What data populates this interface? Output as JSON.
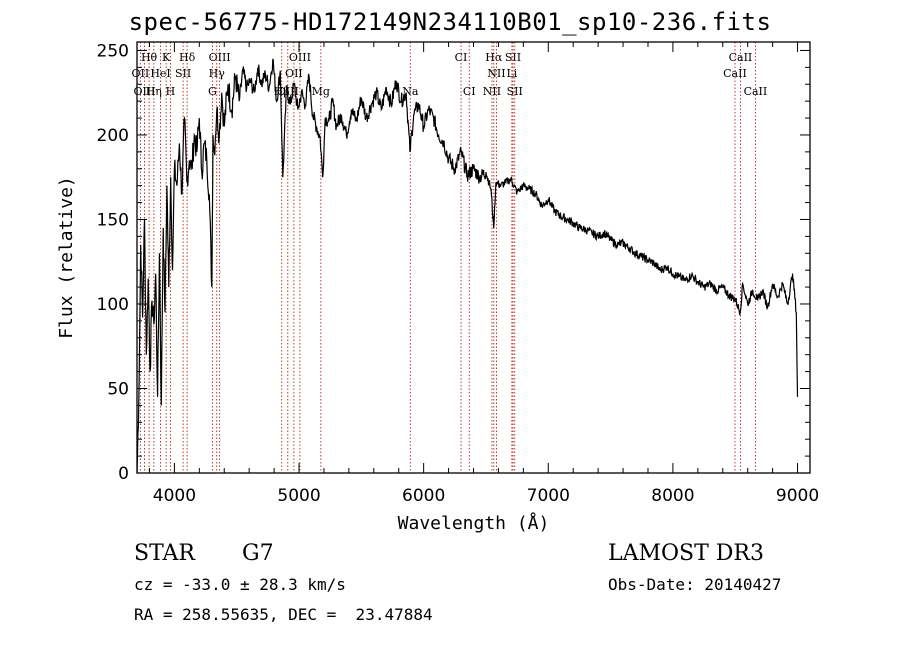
{
  "header": {
    "title": "spec-56775-HD172149N234110B01_sp10-236.fits"
  },
  "info": {
    "class_label": "STAR",
    "subclass": "G7",
    "survey": "LAMOST DR3",
    "cz_text": "cz = -33.0 ± 28.3 km/s",
    "obs_date_text": "Obs-Date: 20140427",
    "coords_text": "RA = 258.55635, DEC =  23.47884"
  },
  "colors": {
    "line_marker": "#b22222",
    "spectrum": "#000000",
    "axes": "#000000"
  },
  "chart_data": {
    "type": "line",
    "title": "spec-56775-HD172149N234110B01_sp10-236.fits",
    "xlabel": "Wavelength (Å)",
    "ylabel": "Flux (relative)",
    "xlim": [
      3700,
      9100
    ],
    "ylim": [
      0,
      255
    ],
    "xticks": [
      4000,
      5000,
      6000,
      7000,
      8000,
      9000
    ],
    "yticks": [
      0,
      50,
      100,
      150,
      200,
      250
    ],
    "series": [
      {
        "name": "flux",
        "x": [
          3700,
          3715,
          3730,
          3745,
          3760,
          3775,
          3790,
          3805,
          3820,
          3835,
          3850,
          3865,
          3880,
          3895,
          3910,
          3925,
          3940,
          3955,
          3970,
          3985,
          4000,
          4020,
          4040,
          4060,
          4080,
          4100,
          4120,
          4140,
          4160,
          4180,
          4200,
          4220,
          4240,
          4260,
          4280,
          4300,
          4310,
          4320,
          4340,
          4360,
          4380,
          4400,
          4430,
          4460,
          4490,
          4520,
          4550,
          4580,
          4610,
          4640,
          4670,
          4700,
          4730,
          4760,
          4790,
          4820,
          4850,
          4870,
          4900,
          4930,
          4960,
          4990,
          5020,
          5050,
          5080,
          5110,
          5140,
          5170,
          5190,
          5210,
          5240,
          5270,
          5300,
          5340,
          5380,
          5420,
          5460,
          5500,
          5540,
          5580,
          5620,
          5660,
          5700,
          5740,
          5780,
          5820,
          5860,
          5890,
          5920,
          5960,
          6000,
          6040,
          6080,
          6120,
          6160,
          6200,
          6250,
          6300,
          6350,
          6400,
          6450,
          6500,
          6540,
          6562,
          6580,
          6620,
          6660,
          6700,
          6750,
          6800,
          6850,
          6900,
          6950,
          7000,
          7050,
          7100,
          7150,
          7200,
          7250,
          7300,
          7350,
          7400,
          7450,
          7500,
          7550,
          7600,
          7650,
          7700,
          7750,
          7800,
          7850,
          7900,
          7950,
          8000,
          8050,
          8100,
          8150,
          8200,
          8250,
          8300,
          8350,
          8400,
          8450,
          8500,
          8540,
          8560,
          8600,
          8640,
          8680,
          8720,
          8760,
          8800,
          8840,
          8880,
          8920,
          8960,
          8990,
          9000
        ],
        "values": [
          0,
          45,
          135,
          92,
          150,
          70,
          115,
          60,
          102,
          88,
          118,
          45,
          130,
          40,
          145,
          95,
          170,
          110,
          175,
          120,
          180,
          170,
          195,
          165,
          210,
          172,
          185,
          180,
          200,
          190,
          210,
          178,
          195,
          185,
          165,
          110,
          200,
          190,
          215,
          200,
          225,
          205,
          230,
          215,
          235,
          220,
          238,
          228,
          232,
          225,
          240,
          230,
          236,
          228,
          245,
          220,
          238,
          175,
          228,
          218,
          230,
          215,
          225,
          218,
          235,
          212,
          205,
          198,
          175,
          210,
          208,
          220,
          205,
          212,
          200,
          215,
          208,
          222,
          210,
          218,
          225,
          215,
          228,
          218,
          232,
          220,
          225,
          190,
          212,
          218,
          205,
          215,
          210,
          200,
          196,
          186,
          180,
          190,
          176,
          180,
          175,
          178,
          168,
          145,
          172,
          170,
          172,
          174,
          166,
          170,
          168,
          165,
          158,
          162,
          155,
          152,
          150,
          148,
          145,
          144,
          142,
          140,
          142,
          138,
          135,
          136,
          133,
          130,
          128,
          126,
          124,
          120,
          122,
          118,
          116,
          114,
          117,
          113,
          110,
          112,
          108,
          110,
          105,
          103,
          95,
          112,
          100,
          108,
          102,
          108,
          98,
          112,
          104,
          112,
          100,
          118,
          95,
          45
        ]
      }
    ],
    "line_markers": [
      {
        "label": "Hθ",
        "x": 3797,
        "row": 0
      },
      {
        "label": "K",
        "x": 3934,
        "row": 0
      },
      {
        "label": "Hδ",
        "x": 4102,
        "row": 0
      },
      {
        "label": "OIII",
        "x": 4363,
        "row": 0
      },
      {
        "label": "OIII",
        "x": 5007,
        "row": 0
      },
      {
        "label": "CI",
        "x": 6300,
        "row": 0
      },
      {
        "label": "Hα",
        "x": 6563,
        "row": 0
      },
      {
        "label": "SII",
        "x": 6717,
        "row": 0
      },
      {
        "label": "CaII",
        "x": 8542,
        "row": 0
      },
      {
        "label": "OII",
        "x": 3727,
        "row": 1
      },
      {
        "label": "HeI",
        "x": 3889,
        "row": 1
      },
      {
        "label": "SII",
        "x": 4070,
        "row": 1
      },
      {
        "label": "Hγ",
        "x": 4340,
        "row": 1
      },
      {
        "label": "OII",
        "x": 4959,
        "row": 1
      },
      {
        "label": "NII",
        "x": 6584,
        "row": 1
      },
      {
        "label": "Li",
        "x": 6708,
        "row": 1
      },
      {
        "label": "CaII",
        "x": 8498,
        "row": 1
      },
      {
        "label": "OIII",
        "x": 3760,
        "row": 2
      },
      {
        "label": "Hη",
        "x": 3835,
        "row": 2
      },
      {
        "label": "H",
        "x": 3968,
        "row": 2
      },
      {
        "label": "G",
        "x": 4305,
        "row": 2
      },
      {
        "label": "Hβ",
        "x": 4861,
        "row": 2
      },
      {
        "label": "OIII",
        "x": 4910,
        "row": 2
      },
      {
        "label": "Mg",
        "x": 5175,
        "row": 2
      },
      {
        "label": "Na",
        "x": 5893,
        "row": 2
      },
      {
        "label": "CI",
        "x": 6366,
        "row": 2
      },
      {
        "label": "NII",
        "x": 6548,
        "row": 2
      },
      {
        "label": "SII",
        "x": 6731,
        "row": 2
      },
      {
        "label": "CaII",
        "x": 8662,
        "row": 2
      }
    ]
  }
}
